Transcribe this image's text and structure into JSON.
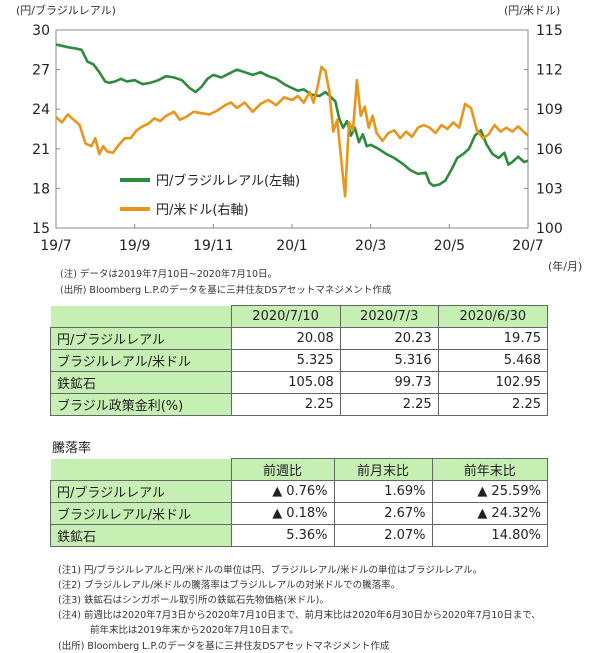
{
  "chart_data": {
    "type": "line",
    "left_axis_label": "(円/ブラジルレアル)",
    "right_axis_label": "(円/米ドル)",
    "x_axis_unit_label": "(年/月)",
    "x_tick_labels": [
      "19/7",
      "19/9",
      "19/11",
      "20/1",
      "20/3",
      "20/5",
      "20/7"
    ],
    "y_left_ticks": [
      "30",
      "27",
      "24",
      "21",
      "18",
      "15"
    ],
    "y_right_ticks": [
      "115",
      "112",
      "109",
      "106",
      "103",
      "100"
    ],
    "y_left_range": [
      15,
      30
    ],
    "y_right_range": [
      100,
      115
    ],
    "x_month_range": [
      0,
      12
    ],
    "grid": false,
    "legend_position": "lower-left",
    "series": [
      {
        "name": "円/ブラジルレアル(左軸)",
        "axis": "left",
        "color": "#2e8b3e",
        "points": [
          [
            0.0,
            28.9
          ],
          [
            0.15,
            28.8
          ],
          [
            0.3,
            28.7
          ],
          [
            0.5,
            28.6
          ],
          [
            0.65,
            28.5
          ],
          [
            0.8,
            27.6
          ],
          [
            0.95,
            27.4
          ],
          [
            1.1,
            26.8
          ],
          [
            1.25,
            26.1
          ],
          [
            1.35,
            26.0
          ],
          [
            1.5,
            26.1
          ],
          [
            1.65,
            26.3
          ],
          [
            1.8,
            26.1
          ],
          [
            2.0,
            26.2
          ],
          [
            2.2,
            25.9
          ],
          [
            2.4,
            26.0
          ],
          [
            2.6,
            26.2
          ],
          [
            2.8,
            26.5
          ],
          [
            3.0,
            26.4
          ],
          [
            3.2,
            26.2
          ],
          [
            3.4,
            25.6
          ],
          [
            3.55,
            25.3
          ],
          [
            3.7,
            25.7
          ],
          [
            3.85,
            26.3
          ],
          [
            4.0,
            26.6
          ],
          [
            4.2,
            26.4
          ],
          [
            4.4,
            26.7
          ],
          [
            4.6,
            27.0
          ],
          [
            4.8,
            26.8
          ],
          [
            5.0,
            26.6
          ],
          [
            5.2,
            26.8
          ],
          [
            5.4,
            26.5
          ],
          [
            5.6,
            26.3
          ],
          [
            5.8,
            25.9
          ],
          [
            6.0,
            25.6
          ],
          [
            6.15,
            25.4
          ],
          [
            6.3,
            25.5
          ],
          [
            6.5,
            25.1
          ],
          [
            6.7,
            25.0
          ],
          [
            6.85,
            25.3
          ],
          [
            7.0,
            24.9
          ],
          [
            7.1,
            24.6
          ],
          [
            7.2,
            23.3
          ],
          [
            7.3,
            22.6
          ],
          [
            7.4,
            23.1
          ],
          [
            7.5,
            22.0
          ],
          [
            7.6,
            22.6
          ],
          [
            7.7,
            21.5
          ],
          [
            7.8,
            22.1
          ],
          [
            7.9,
            21.2
          ],
          [
            8.0,
            21.3
          ],
          [
            8.2,
            21.0
          ],
          [
            8.4,
            20.6
          ],
          [
            8.6,
            20.3
          ],
          [
            8.8,
            19.9
          ],
          [
            9.0,
            19.4
          ],
          [
            9.2,
            19.1
          ],
          [
            9.4,
            19.2
          ],
          [
            9.5,
            18.4
          ],
          [
            9.6,
            18.2
          ],
          [
            9.75,
            18.3
          ],
          [
            9.9,
            18.6
          ],
          [
            10.05,
            19.4
          ],
          [
            10.2,
            20.3
          ],
          [
            10.35,
            20.6
          ],
          [
            10.5,
            21.0
          ],
          [
            10.65,
            22.0
          ],
          [
            10.8,
            22.4
          ],
          [
            10.95,
            21.3
          ],
          [
            11.1,
            20.6
          ],
          [
            11.25,
            20.3
          ],
          [
            11.4,
            20.7
          ],
          [
            11.5,
            19.8
          ],
          [
            11.6,
            20.0
          ],
          [
            11.75,
            20.4
          ],
          [
            11.9,
            20.0
          ],
          [
            12.0,
            20.1
          ]
        ]
      },
      {
        "name": "円/米ドル(右軸)",
        "axis": "right",
        "color": "#e8951c",
        "points": [
          [
            0.0,
            108.4
          ],
          [
            0.15,
            108.0
          ],
          [
            0.3,
            108.6
          ],
          [
            0.45,
            108.2
          ],
          [
            0.6,
            107.8
          ],
          [
            0.75,
            106.4
          ],
          [
            0.9,
            106.2
          ],
          [
            1.0,
            106.8
          ],
          [
            1.1,
            105.6
          ],
          [
            1.2,
            106.2
          ],
          [
            1.3,
            105.8
          ],
          [
            1.45,
            105.7
          ],
          [
            1.6,
            106.3
          ],
          [
            1.75,
            106.8
          ],
          [
            1.9,
            106.8
          ],
          [
            2.05,
            107.4
          ],
          [
            2.2,
            107.7
          ],
          [
            2.35,
            107.9
          ],
          [
            2.5,
            108.3
          ],
          [
            2.65,
            108.1
          ],
          [
            2.8,
            108.5
          ],
          [
            3.0,
            108.8
          ],
          [
            3.15,
            108.2
          ],
          [
            3.3,
            108.4
          ],
          [
            3.5,
            108.8
          ],
          [
            3.7,
            108.7
          ],
          [
            3.9,
            108.6
          ],
          [
            4.1,
            108.9
          ],
          [
            4.3,
            109.3
          ],
          [
            4.45,
            109.5
          ],
          [
            4.6,
            109.1
          ],
          [
            4.8,
            109.5
          ],
          [
            5.0,
            108.8
          ],
          [
            5.2,
            109.4
          ],
          [
            5.4,
            109.7
          ],
          [
            5.6,
            109.3
          ],
          [
            5.8,
            109.9
          ],
          [
            6.0,
            109.7
          ],
          [
            6.15,
            110.0
          ],
          [
            6.3,
            109.5
          ],
          [
            6.45,
            110.3
          ],
          [
            6.55,
            109.5
          ],
          [
            6.65,
            110.7
          ],
          [
            6.75,
            112.2
          ],
          [
            6.85,
            111.9
          ],
          [
            6.95,
            110.3
          ],
          [
            7.05,
            107.3
          ],
          [
            7.15,
            108.2
          ],
          [
            7.25,
            105.2
          ],
          [
            7.35,
            102.4
          ],
          [
            7.45,
            108.0
          ],
          [
            7.55,
            107.4
          ],
          [
            7.65,
            111.2
          ],
          [
            7.75,
            108.5
          ],
          [
            7.85,
            109.2
          ],
          [
            7.95,
            107.6
          ],
          [
            8.05,
            108.5
          ],
          [
            8.15,
            107.2
          ],
          [
            8.3,
            106.6
          ],
          [
            8.45,
            107.2
          ],
          [
            8.6,
            107.4
          ],
          [
            8.75,
            106.8
          ],
          [
            8.9,
            107.3
          ],
          [
            9.05,
            106.9
          ],
          [
            9.2,
            107.6
          ],
          [
            9.35,
            107.8
          ],
          [
            9.5,
            107.6
          ],
          [
            9.65,
            107.2
          ],
          [
            9.8,
            107.8
          ],
          [
            9.95,
            107.5
          ],
          [
            10.1,
            108.0
          ],
          [
            10.25,
            107.6
          ],
          [
            10.4,
            109.4
          ],
          [
            10.55,
            109.1
          ],
          [
            10.7,
            107.4
          ],
          [
            10.85,
            106.8
          ],
          [
            11.0,
            107.1
          ],
          [
            11.15,
            107.8
          ],
          [
            11.3,
            107.3
          ],
          [
            11.45,
            107.6
          ],
          [
            11.6,
            107.3
          ],
          [
            11.75,
            107.7
          ],
          [
            11.85,
            107.4
          ],
          [
            12.0,
            107.0
          ]
        ]
      }
    ]
  },
  "notes_top": [
    "(注) データは2019年7月10日~2020年7月10日。",
    "(出所) Bloomberg L.P.のデータを基に三井住友DSアセットマネジメント作成"
  ],
  "table1": {
    "headers": [
      "2020/7/10",
      "2020/7/3",
      "2020/6/30"
    ],
    "rows": [
      {
        "label": "円/ブラジルレアル",
        "values": [
          "20.08",
          "20.23",
          "19.75"
        ]
      },
      {
        "label": "ブラジルレアル/米ドル",
        "values": [
          "5.325",
          "5.316",
          "5.468"
        ]
      },
      {
        "label": "鉄鉱石",
        "values": [
          "105.08",
          "99.73",
          "102.95"
        ]
      },
      {
        "label": "ブラジル政策金利(%)",
        "values": [
          "2.25",
          "2.25",
          "2.25"
        ]
      }
    ]
  },
  "table2": {
    "title": "騰落率",
    "headers": [
      "前週比",
      "前月末比",
      "前年末比"
    ],
    "rows": [
      {
        "label": "円/ブラジルレアル",
        "values": [
          {
            "sign": "▲",
            "num": "0.76%"
          },
          {
            "sign": "",
            "num": "1.69%"
          },
          {
            "sign": "▲",
            "num": "25.59%"
          }
        ]
      },
      {
        "label": "ブラジルレアル/米ドル",
        "values": [
          {
            "sign": "▲",
            "num": "0.18%"
          },
          {
            "sign": "",
            "num": "2.67%"
          },
          {
            "sign": "▲",
            "num": "24.32%"
          }
        ]
      },
      {
        "label": "鉄鉱石",
        "values": [
          {
            "sign": "",
            "num": "5.36%"
          },
          {
            "sign": "",
            "num": "2.07%"
          },
          {
            "sign": "",
            "num": "14.80%"
          }
        ]
      }
    ]
  },
  "notes_bottom": [
    "(注1) 円/ブラジルレアルと円/米ドルの単位は円、ブラジルレアル/米ドルの単位はブラジルレアル。",
    "(注2) ブラジルレアル/米ドルの騰落率はブラジルレアルの対米ドルでの騰落率。",
    "(注3) 鉄鉱石はシンガポール取引所の鉄鉱石先物価格(米ドル)。",
    "(注4) 前週比は2020年7月3日から2020年7月10日まで、前月末比は2020年6月30日から2020年7月10日まで、",
    "前年末比は2019年末から2020年7月10日まで。",
    "(出所) Bloomberg L.P.のデータを基に三井住友DSアセットマネジメント作成"
  ]
}
